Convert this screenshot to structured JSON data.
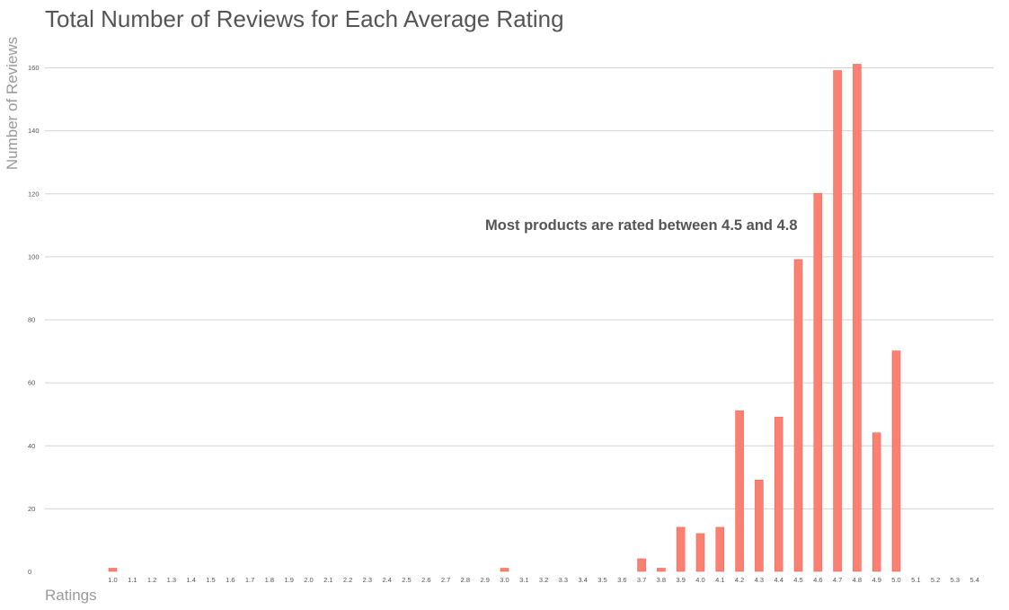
{
  "chart_data": {
    "type": "bar",
    "title": "Total Number of Reviews for Each Average Rating",
    "xlabel": "Ratings",
    "ylabel": "Number of Reviews",
    "annotation": "Most products are rated between 4.5 and 4.8",
    "categories": [
      "1.0",
      "1.1",
      "1.2",
      "1.3",
      "1.4",
      "1.5",
      "1.6",
      "1.7",
      "1.8",
      "1.9",
      "2.0",
      "2.1",
      "2.2",
      "2.3",
      "2.4",
      "2.5",
      "2.6",
      "2.7",
      "2.8",
      "2.9",
      "3.0",
      "3.1",
      "3.2",
      "3.3",
      "3.4",
      "3.5",
      "3.6",
      "3.7",
      "3.8",
      "3.9",
      "4.0",
      "4.1",
      "4.2",
      "4.3",
      "4.4",
      "4.5",
      "4.6",
      "4.7",
      "4.8",
      "4.9",
      "5.0",
      "5.1",
      "5.2",
      "5.3",
      "5.4"
    ],
    "values": [
      1,
      0,
      0,
      0,
      0,
      0,
      0,
      0,
      0,
      0,
      0,
      0,
      0,
      0,
      0,
      0,
      0,
      0,
      0,
      0,
      1,
      0,
      0,
      0,
      0,
      0,
      0,
      4,
      1,
      14,
      12,
      14,
      51,
      29,
      49,
      99,
      120,
      159,
      161,
      44,
      70,
      0,
      0,
      0,
      0
    ],
    "ylim": [
      0,
      160
    ],
    "yticks": [
      0,
      20,
      40,
      60,
      80,
      100,
      120,
      140,
      160
    ],
    "grid": true,
    "legend": "none",
    "bar_color": "#fa8072"
  }
}
